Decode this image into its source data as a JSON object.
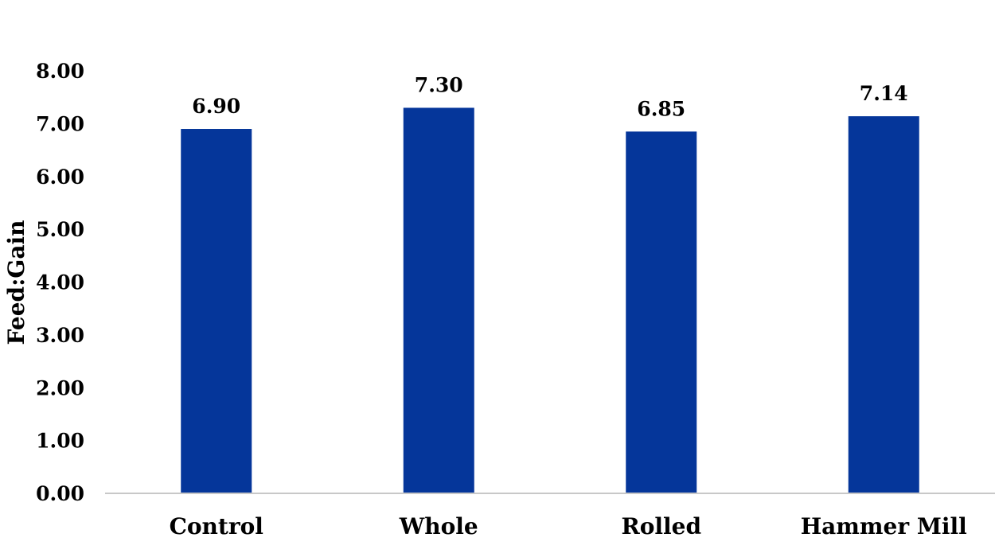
{
  "chart_data": {
    "type": "bar",
    "categories": [
      "Control",
      "Whole",
      "Rolled",
      "Hammer Mill"
    ],
    "values": [
      6.9,
      7.3,
      6.85,
      7.14
    ],
    "data_labels": [
      "6.90",
      "7.30",
      "6.85",
      "7.14"
    ],
    "title": "",
    "xlabel": "",
    "ylabel": "Feed:Gain",
    "ylim": [
      0,
      8
    ],
    "yticks": [
      "0.00",
      "1.00",
      "2.00",
      "3.00",
      "4.00",
      "5.00",
      "6.00",
      "7.00",
      "8.00"
    ],
    "grid": false,
    "legend": "none",
    "bar_color": "#05369a",
    "axis_color": "#c8c8c8"
  }
}
